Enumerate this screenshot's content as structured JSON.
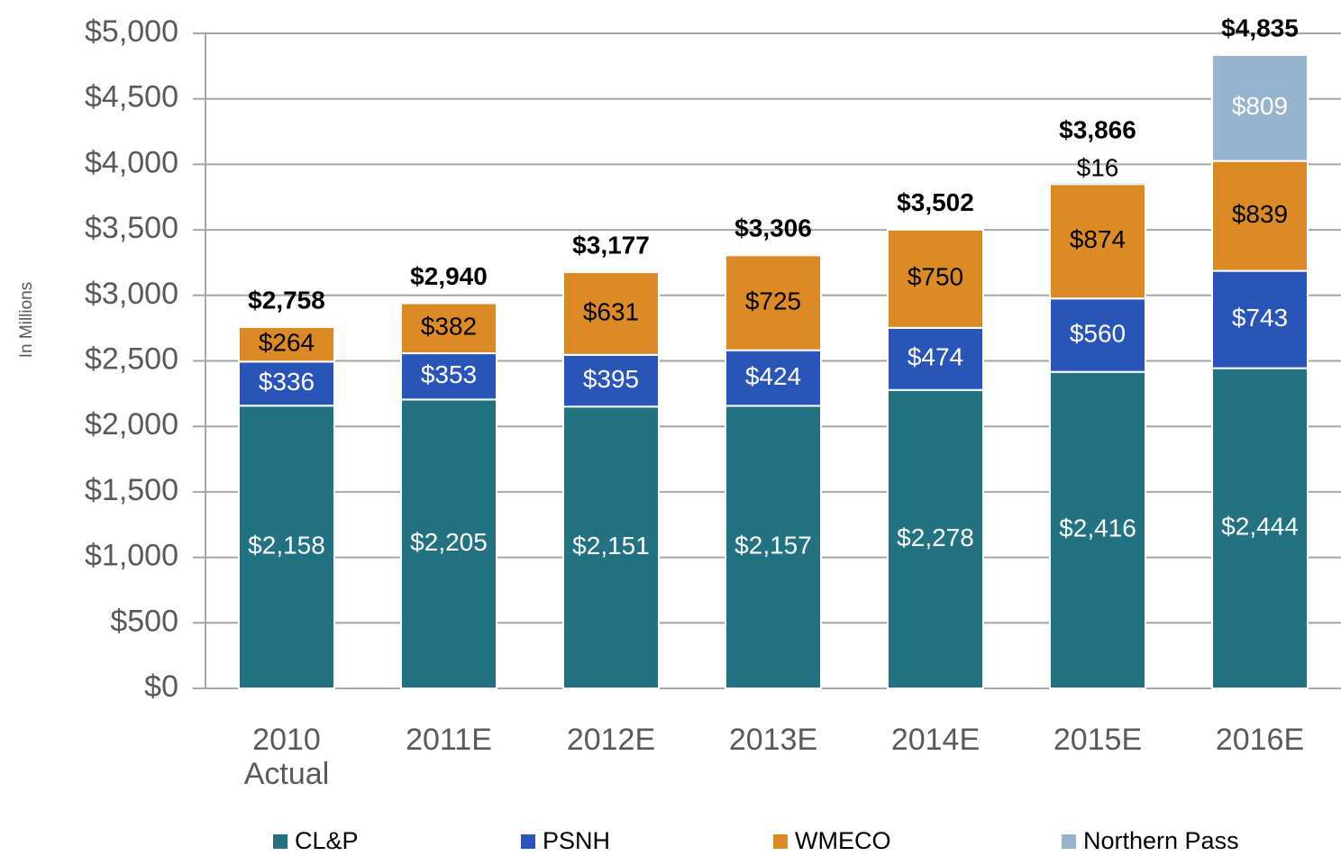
{
  "chart_data": {
    "type": "stacked_bar",
    "y_label": "In Millions",
    "categories": [
      "2010 Actual",
      "2011E",
      "2012E",
      "2013E",
      "2014E",
      "2015E",
      "2016E"
    ],
    "series": [
      {
        "name": "CL&P",
        "color": "#237282",
        "label_color": "#ffffff",
        "values": [
          2158,
          2205,
          2151,
          2157,
          2278,
          2416,
          2444
        ],
        "value_labels": [
          "$2,158",
          "$2,205",
          "$2,151",
          "$2,157",
          "$2,278",
          "$2,416",
          "$2,444"
        ]
      },
      {
        "name": "PSNH",
        "color": "#2a55b8",
        "label_color": "#ffffff",
        "values": [
          336,
          353,
          395,
          424,
          474,
          560,
          743
        ],
        "value_labels": [
          "$336",
          "$353",
          "$395",
          "$424",
          "$474",
          "$560",
          "$743"
        ]
      },
      {
        "name": "WMECO",
        "color": "#dc8a26",
        "label_color": "#000000",
        "values": [
          264,
          382,
          631,
          725,
          750,
          874,
          839
        ],
        "value_labels": [
          "$264",
          "$382",
          "$631",
          "$725",
          "$750",
          "$874",
          "$839"
        ]
      },
      {
        "name": "Northern Pass",
        "color": "#97b4cf",
        "label_color": "#ffffff",
        "values": [
          null,
          null,
          null,
          null,
          null,
          16,
          809
        ],
        "value_labels": [
          null,
          null,
          null,
          null,
          null,
          "$16",
          "$809"
        ]
      }
    ],
    "totals": [
      2758,
      2940,
      3177,
      3306,
      3502,
      3866,
      4835
    ],
    "totals_labels": [
      "$2,758",
      "$2,940",
      "$3,177",
      "$3,306",
      "$3,502",
      "$3,866",
      "$4,835"
    ],
    "ylim": [
      0,
      5000
    ],
    "yticks": [
      {
        "value": 0,
        "label": "$0"
      },
      {
        "value": 500,
        "label": "$500"
      },
      {
        "value": 1000,
        "label": "$1,000"
      },
      {
        "value": 1500,
        "label": "$1,500"
      },
      {
        "value": 2000,
        "label": "$2,000"
      },
      {
        "value": 2500,
        "label": "$2,500"
      },
      {
        "value": 3000,
        "label": "$3,000"
      },
      {
        "value": 3500,
        "label": "$3,500"
      },
      {
        "value": 4000,
        "label": "$4,000"
      },
      {
        "value": 4500,
        "label": "$4,500"
      },
      {
        "value": 5000,
        "label": "$5,000"
      }
    ],
    "grid": true,
    "legend": "bottom"
  }
}
